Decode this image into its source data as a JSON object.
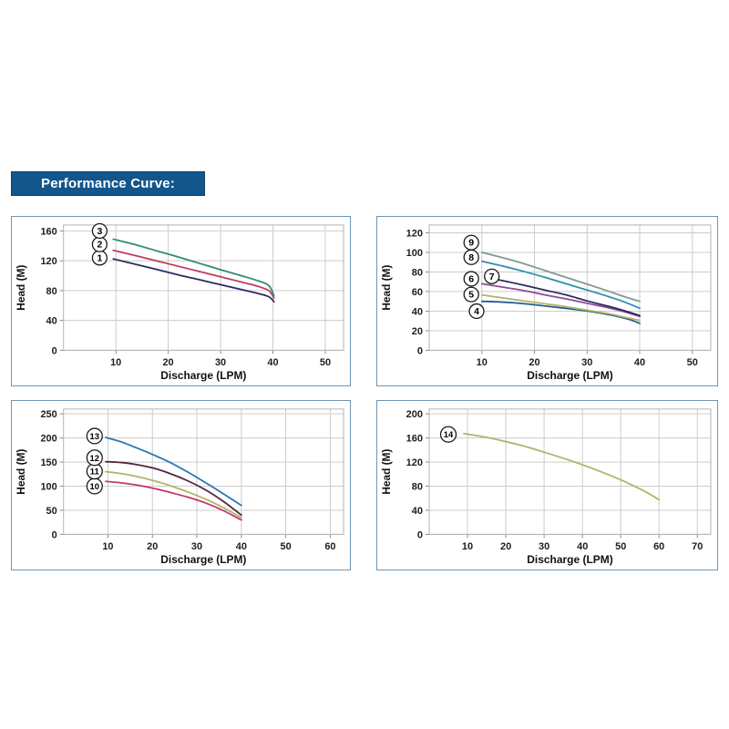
{
  "header": {
    "label": "Performance Curve:",
    "bg_color": "#13568c",
    "border_color": "#0d3f6d",
    "text_color": "#ffffff"
  },
  "style": {
    "panel_border_color": "#7096b4",
    "grid_color": "#cccccc",
    "plot_border_color": "#b3b3b3",
    "tick_color": "#8a8a8a",
    "text_color": "#1d1d1d",
    "background": "#ffffff"
  },
  "chart_data": [
    {
      "type": "line",
      "position": "top-left",
      "xlabel": "Discharge (LPM)",
      "ylabel": "Head (M)",
      "x_ticks": [
        10,
        20,
        30,
        40,
        50
      ],
      "y_ticks": [
        0,
        40,
        80,
        120,
        160
      ],
      "xlim": [
        0,
        53.5
      ],
      "ylim": [
        0,
        168
      ],
      "grid": true,
      "legend": "circled numbers beside curve starts",
      "series": [
        {
          "name": "1",
          "color": "#2d2a63",
          "label_pos": [
            6.9,
            124
          ],
          "points": [
            [
              9.5,
              122.5
            ],
            [
              14,
              115
            ],
            [
              18,
              108
            ],
            [
              22,
              101
            ],
            [
              26,
              94.5
            ],
            [
              30,
              88
            ],
            [
              34,
              81.5
            ],
            [
              37,
              76.5
            ],
            [
              39,
              72.5
            ],
            [
              39.8,
              68.5
            ],
            [
              40.2,
              65
            ]
          ]
        },
        {
          "name": "2",
          "color": "#c23a62",
          "label_pos": [
            6.9,
            142
          ],
          "points": [
            [
              9.5,
              134
            ],
            [
              14,
              126.5
            ],
            [
              18,
              119.5
            ],
            [
              22,
              112.5
            ],
            [
              26,
              105.5
            ],
            [
              30,
              98.5
            ],
            [
              34,
              91.5
            ],
            [
              37,
              86
            ],
            [
              39,
              81
            ],
            [
              39.8,
              75
            ],
            [
              40.2,
              70
            ]
          ]
        },
        {
          "name": "3",
          "color": "#2e8c71",
          "label_pos": [
            6.9,
            160
          ],
          "points": [
            [
              9.5,
              149
            ],
            [
              14,
              141
            ],
            [
              18,
              133
            ],
            [
              22,
              125
            ],
            [
              26,
              116.5
            ],
            [
              30,
              108
            ],
            [
              34,
              100
            ],
            [
              37,
              93.5
            ],
            [
              39,
              88
            ],
            [
              39.8,
              80
            ],
            [
              40.2,
              73
            ]
          ]
        }
      ]
    },
    {
      "type": "line",
      "position": "top-right",
      "xlabel": "Discharge (LPM)",
      "ylabel": "Head (M)",
      "x_ticks": [
        10,
        20,
        30,
        40,
        50
      ],
      "y_ticks": [
        0,
        20,
        40,
        60,
        80,
        100,
        120
      ],
      "xlim": [
        0,
        53.5
      ],
      "ylim": [
        0,
        128
      ],
      "grid": true,
      "legend": "circled numbers beside curve starts",
      "series": [
        {
          "name": "4",
          "color": "#1f5f8e",
          "label_pos": [
            9,
            40
          ],
          "points": [
            [
              10,
              50
            ],
            [
              13,
              49.5
            ],
            [
              16,
              48.5
            ],
            [
              20,
              46.5
            ],
            [
              24,
              44
            ],
            [
              28,
              41.5
            ],
            [
              32,
              38.5
            ],
            [
              35,
              35.5
            ],
            [
              38,
              31.5
            ],
            [
              40,
              27.5
            ]
          ]
        },
        {
          "name": "5",
          "color": "#b4b269",
          "label_pos": [
            8,
            57
          ],
          "points": [
            [
              10,
              56.5
            ],
            [
              14,
              53.5
            ],
            [
              18,
              50.5
            ],
            [
              22,
              47.5
            ],
            [
              26,
              44.5
            ],
            [
              30,
              41
            ],
            [
              34,
              37.5
            ],
            [
              37,
              34
            ],
            [
              40,
              30.5
            ]
          ]
        },
        {
          "name": "6",
          "color": "#8d4a96",
          "label_pos": [
            8,
            73
          ],
          "points": [
            [
              10,
              68
            ],
            [
              14,
              64.5
            ],
            [
              18,
              61
            ],
            [
              22,
              56.5
            ],
            [
              26,
              52.5
            ],
            [
              30,
              48
            ],
            [
              34,
              43.5
            ],
            [
              37,
              39.5
            ],
            [
              40,
              34.5
            ]
          ]
        },
        {
          "name": "7",
          "color": "#2d2a63",
          "label_pos": [
            11.9,
            75.5
          ],
          "points": [
            [
              12.2,
              73
            ],
            [
              15,
              70
            ],
            [
              18,
              66.5
            ],
            [
              22,
              61.5
            ],
            [
              26,
              56.5
            ],
            [
              30,
              50.5
            ],
            [
              34,
              45
            ],
            [
              37,
              40.5
            ],
            [
              40,
              35.5
            ]
          ]
        },
        {
          "name": "8",
          "color": "#2d8fae",
          "label_pos": [
            8,
            95
          ],
          "points": [
            [
              10,
              91
            ],
            [
              14,
              86
            ],
            [
              18,
              80.5
            ],
            [
              22,
              74.5
            ],
            [
              26,
              68
            ],
            [
              30,
              61.5
            ],
            [
              34,
              55
            ],
            [
              37,
              49.5
            ],
            [
              40,
              43
            ]
          ]
        },
        {
          "name": "9",
          "color": "#7f9a94",
          "label_pos": [
            8,
            110
          ],
          "points": [
            [
              10,
              100
            ],
            [
              14,
              94.5
            ],
            [
              18,
              88.5
            ],
            [
              22,
              81.5
            ],
            [
              26,
              74.5
            ],
            [
              30,
              67.5
            ],
            [
              34,
              60.5
            ],
            [
              37,
              55
            ],
            [
              40,
              50
            ]
          ]
        }
      ]
    },
    {
      "type": "line",
      "position": "bottom-left",
      "xlabel": "Discharge (LPM)",
      "ylabel": "Head (M)",
      "x_ticks": [
        10,
        20,
        30,
        40,
        50,
        60
      ],
      "y_ticks": [
        0,
        50,
        100,
        150,
        200,
        250
      ],
      "xlim": [
        0,
        63
      ],
      "ylim": [
        0,
        260
      ],
      "grid": true,
      "legend": "circled numbers beside curve starts",
      "series": [
        {
          "name": "10",
          "color": "#c03a62",
          "label_pos": [
            7,
            100
          ],
          "points": [
            [
              9.5,
              110
            ],
            [
              13,
              107
            ],
            [
              16,
              103
            ],
            [
              20,
              96
            ],
            [
              24,
              87
            ],
            [
              28,
              77
            ],
            [
              32,
              65
            ],
            [
              36,
              49
            ],
            [
              40,
              30
            ]
          ]
        },
        {
          "name": "11",
          "color": "#b4b269",
          "label_pos": [
            7,
            131
          ],
          "points": [
            [
              9.5,
              130
            ],
            [
              13,
              126
            ],
            [
              16,
              121
            ],
            [
              20,
              112
            ],
            [
              24,
              101
            ],
            [
              28,
              88
            ],
            [
              32,
              73
            ],
            [
              36,
              55
            ],
            [
              40,
              35
            ]
          ]
        },
        {
          "name": "12",
          "color": "#53243f",
          "label_pos": [
            7,
            159
          ],
          "points": [
            [
              9.5,
              151
            ],
            [
              13,
              149
            ],
            [
              16,
              145.5
            ],
            [
              20,
              138
            ],
            [
              24,
              126
            ],
            [
              28,
              111
            ],
            [
              32,
              92
            ],
            [
              36,
              68
            ],
            [
              40,
              40
            ]
          ]
        },
        {
          "name": "13",
          "color": "#2778b5",
          "label_pos": [
            7,
            204
          ],
          "points": [
            [
              9.5,
              201
            ],
            [
              13,
              192
            ],
            [
              16,
              181
            ],
            [
              20,
              166
            ],
            [
              24,
              149
            ],
            [
              28,
              129
            ],
            [
              32,
              107
            ],
            [
              36,
              84
            ],
            [
              40,
              60
            ]
          ]
        }
      ]
    },
    {
      "type": "line",
      "position": "bottom-right",
      "xlabel": "Discharge (LPM)",
      "ylabel": "Head (M)",
      "x_ticks": [
        10,
        20,
        30,
        40,
        50,
        60,
        70
      ],
      "y_ticks": [
        0,
        40,
        80,
        120,
        160,
        200
      ],
      "xlim": [
        0,
        73.5
      ],
      "ylim": [
        0,
        208
      ],
      "grid": true,
      "legend": "circled number beside curve start",
      "series": [
        {
          "name": "14",
          "color": "#b4b269",
          "label_pos": [
            5,
            166
          ],
          "points": [
            [
              9,
              167.5
            ],
            [
              15,
              161
            ],
            [
              20,
              154
            ],
            [
              25,
              146
            ],
            [
              30,
              136.5
            ],
            [
              35,
              126.5
            ],
            [
              40,
              115.5
            ],
            [
              45,
              103.5
            ],
            [
              50,
              90.5
            ],
            [
              54,
              78.5
            ],
            [
              57,
              69
            ],
            [
              60,
              57.5
            ]
          ]
        }
      ]
    }
  ]
}
